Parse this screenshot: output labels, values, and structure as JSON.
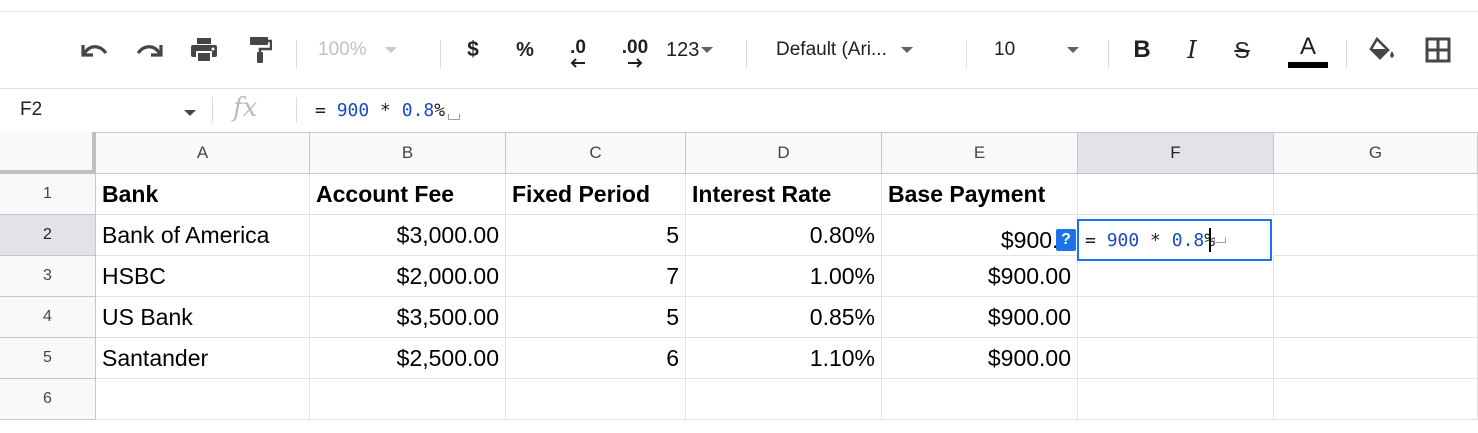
{
  "toolbar": {
    "zoom": "100%",
    "currency": "$",
    "percent": "%",
    "decrease_decimal": ".0",
    "increase_decimal": ".00",
    "more_formats": "123",
    "font_family": "Default (Ari...",
    "font_size": "10",
    "bold": "B",
    "italic": "I",
    "strikethrough": "S",
    "text_color": "A",
    "text_color_value": "#000000",
    "icons": [
      "undo-icon",
      "redo-icon",
      "print-icon",
      "paint-format-icon",
      "fill-color-icon",
      "borders-icon"
    ]
  },
  "formula_bar": {
    "name_box": "F2",
    "fx": "fx",
    "tokens": [
      "=",
      "900",
      "*",
      "0.8",
      "%"
    ]
  },
  "grid": {
    "columns": [
      "A",
      "B",
      "C",
      "D",
      "E",
      "F",
      "G"
    ],
    "rows": [
      "1",
      "2",
      "3",
      "4",
      "5",
      "6"
    ],
    "selected_column": "F",
    "selected_row": "2",
    "header_row": [
      "Bank",
      "Account Fee",
      "Fixed Period",
      "Interest Rate",
      "Base Payment"
    ],
    "data": [
      [
        "Bank of America",
        "$3,000.00",
        "5",
        "0.80%",
        "$900.00"
      ],
      [
        "HSBC",
        "$2,000.00",
        "7",
        "1.00%",
        "$900.00"
      ],
      [
        "US Bank",
        "$3,500.00",
        "5",
        "0.85%",
        "$900.00"
      ],
      [
        "Santander",
        "$2,500.00",
        "6",
        "1.10%",
        "$900.00"
      ]
    ]
  },
  "editor": {
    "help_badge": "?",
    "tokens": [
      "=",
      "900",
      "*",
      "0.8",
      "%"
    ]
  },
  "colors": {
    "selection": "#1a73e8",
    "formula_number": "#1a4bc4"
  }
}
